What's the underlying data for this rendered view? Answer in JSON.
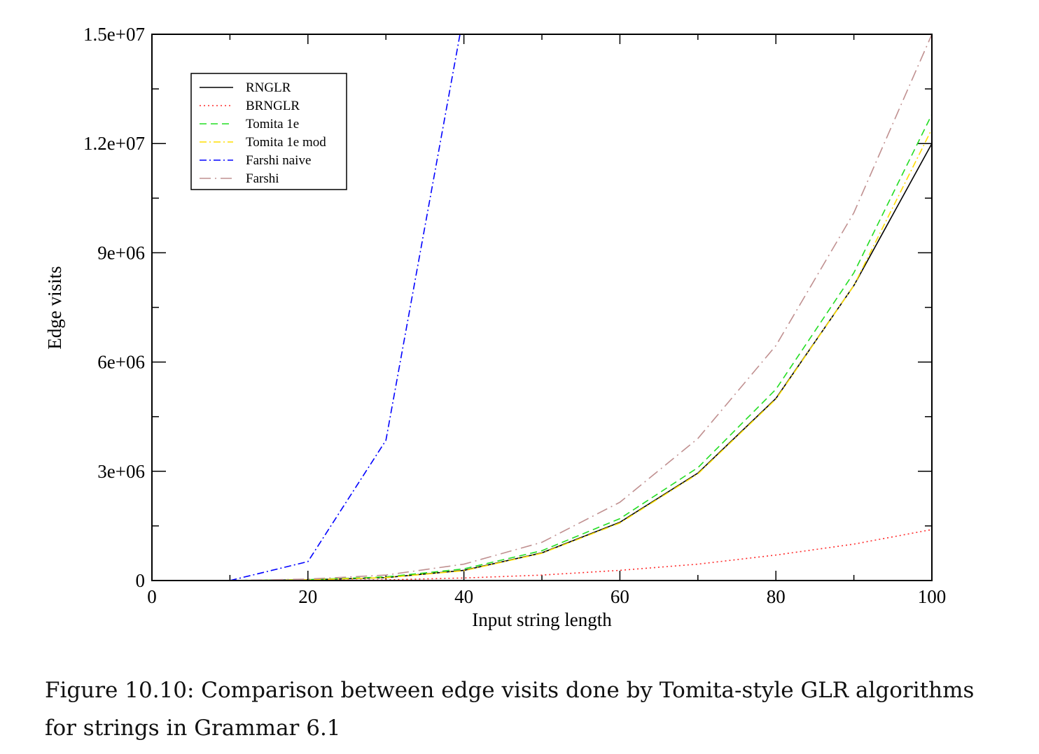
{
  "chart_data": {
    "type": "line",
    "title": "",
    "xlabel": "Input string length",
    "ylabel": "Edge visits",
    "xlim": [
      0,
      100
    ],
    "ylim": [
      0,
      15000000
    ],
    "xticks": [
      0,
      20,
      40,
      60,
      80,
      100
    ],
    "xtick_labels": [
      "0",
      "20",
      "40",
      "60",
      "80",
      "100"
    ],
    "yticks": [
      0,
      3000000,
      6000000,
      9000000,
      12000000,
      15000000
    ],
    "ytick_labels": [
      "0",
      "3e+06",
      "6e+06",
      "9e+06",
      "1.2e+07",
      "1.5e+07"
    ],
    "grid": false,
    "legend_position": "top-left",
    "series": [
      {
        "name": "RNGLR",
        "color": "#000000",
        "dash": "solid",
        "x": [
          10,
          20,
          30,
          40,
          50,
          60,
          70,
          80,
          90,
          100
        ],
        "values": [
          0,
          20000,
          80000,
          280000,
          760000,
          1600000,
          2950000,
          5000000,
          8100000,
          12000000
        ]
      },
      {
        "name": "BRNGLR",
        "color": "#ff2a2a",
        "dash": "dotted",
        "x": [
          10,
          20,
          30,
          40,
          50,
          60,
          70,
          80,
          90,
          100
        ],
        "values": [
          0,
          3000,
          20000,
          70000,
          150000,
          280000,
          450000,
          700000,
          1000000,
          1400000
        ]
      },
      {
        "name": "Tomita 1e",
        "color": "#22dd22",
        "dash": "dashed",
        "x": [
          10,
          20,
          30,
          40,
          50,
          60,
          70,
          80,
          90,
          100
        ],
        "values": [
          0,
          25000,
          100000,
          320000,
          820000,
          1700000,
          3100000,
          5250000,
          8450000,
          12800000
        ]
      },
      {
        "name": "Tomita 1e mod",
        "color": "#ffdd00",
        "dash": "dashdot",
        "x": [
          10,
          20,
          30,
          40,
          50,
          60,
          70,
          80,
          90,
          100
        ],
        "values": [
          0,
          20000,
          80000,
          270000,
          750000,
          1580000,
          2930000,
          4980000,
          8100000,
          12400000
        ]
      },
      {
        "name": "Farshi naive",
        "color": "#0000ff",
        "dash": "dashdot",
        "x": [
          10,
          20,
          30,
          39.5
        ],
        "values": [
          0,
          520000,
          3850000,
          15000000
        ]
      },
      {
        "name": "Farshi",
        "color": "#c09090",
        "dash": "longdashdot",
        "x": [
          10,
          20,
          30,
          40,
          50,
          60,
          70,
          80,
          90,
          100
        ],
        "values": [
          0,
          40000,
          150000,
          450000,
          1050000,
          2150000,
          3900000,
          6450000,
          10100000,
          15000000
        ]
      }
    ]
  },
  "caption": "Figure 10.10: Comparison between edge visits done by Tomita-style GLR algorithms for strings in Grammar 6.1"
}
